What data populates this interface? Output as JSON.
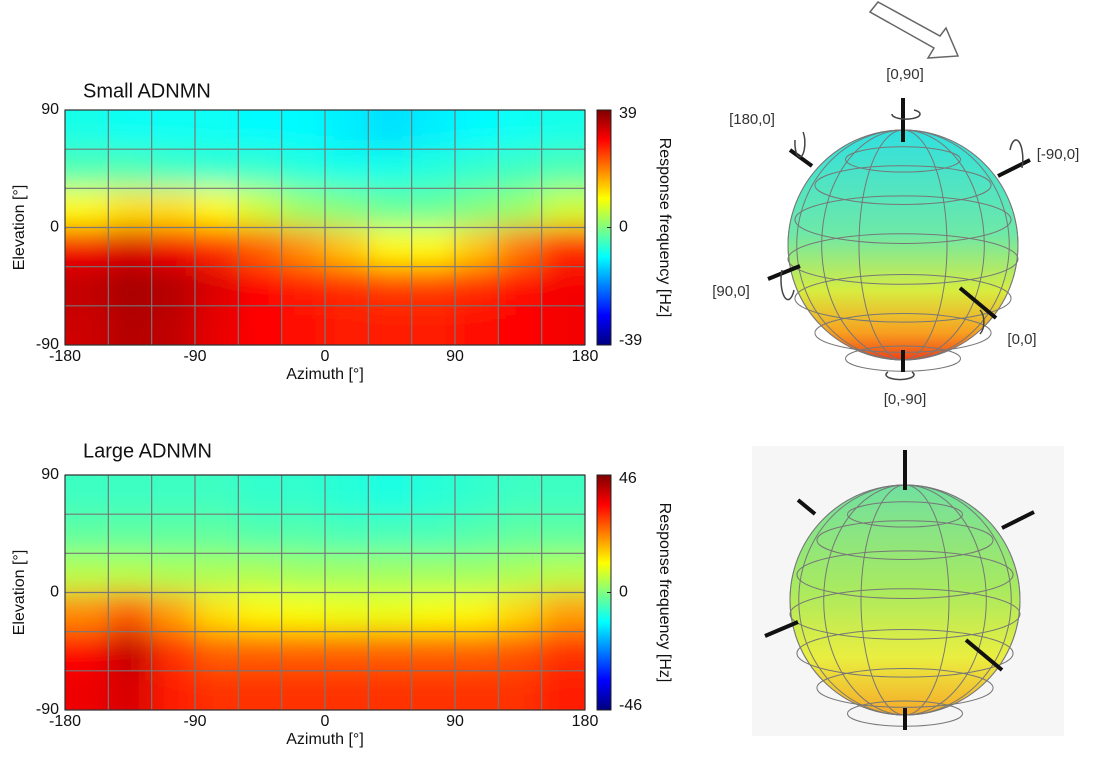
{
  "chart_data": [
    {
      "type": "heatmap",
      "title": "Small ADNMN",
      "x_label": "Azimuth  [°]",
      "y_label": "Elevation [°]",
      "colorbar_label": "Response frequency [Hz]",
      "xbins": [
        -180,
        -150,
        -120,
        -90,
        -60,
        -30,
        0,
        30,
        60,
        90,
        120,
        150,
        180
      ],
      "ybins": [
        90,
        60,
        30,
        0,
        -30,
        -60,
        -90
      ],
      "z": [
        [
          -8,
          -9,
          -9,
          -9,
          -10,
          -10,
          -11,
          -12,
          -11,
          -10,
          -9,
          -8
        ],
        [
          -4,
          -4,
          -5,
          -6,
          -6,
          -7,
          -8,
          -8,
          -7,
          -6,
          -5,
          -4
        ],
        [
          10,
          12,
          12,
          10,
          6,
          2,
          0,
          -2,
          -2,
          0,
          2,
          6
        ],
        [
          30,
          32,
          30,
          26,
          22,
          18,
          14,
          10,
          10,
          14,
          20,
          26
        ],
        [
          34,
          36,
          35,
          32,
          29,
          27,
          26,
          25,
          25,
          26,
          28,
          30
        ],
        [
          33,
          35,
          34,
          31,
          29,
          28,
          27,
          27,
          27,
          28,
          29,
          30
        ]
      ],
      "xlim": [
        -180,
        180
      ],
      "xticks": [
        -180,
        -90,
        0,
        90,
        180
      ],
      "ylim": [
        -90,
        90
      ],
      "yticks": [
        -90,
        0,
        90
      ],
      "zlim": [
        -39,
        39
      ],
      "zticks": [
        -39,
        0,
        39
      ],
      "colormap": [
        "#00007f",
        "#0000ff",
        "#007fff",
        "#00ffff",
        "#7fff7f",
        "#ffff00",
        "#ff7f00",
        "#ff0000",
        "#7f0000"
      ],
      "grid": true
    },
    {
      "type": "heatmap",
      "title": "Large ADNMN",
      "x_label": "Azimuth  [°]",
      "y_label": "Elevation [°]",
      "colorbar_label": "Response frequency [Hz]",
      "xbins": [
        -180,
        -150,
        -120,
        -90,
        -60,
        -30,
        0,
        30,
        60,
        90,
        120,
        150,
        180
      ],
      "ybins": [
        90,
        60,
        30,
        0,
        -30,
        -60,
        -90
      ],
      "z": [
        [
          -6,
          -6,
          -6,
          -6,
          -7,
          -7,
          -8,
          -9,
          -8,
          -7,
          -6,
          -6
        ],
        [
          -3,
          -3,
          -3,
          -3,
          -4,
          -4,
          -5,
          -5,
          -5,
          -4,
          -3,
          -3
        ],
        [
          5,
          5,
          4,
          4,
          4,
          3,
          3,
          3,
          3,
          3,
          4,
          5
        ],
        [
          22,
          26,
          20,
          14,
          12,
          11,
          10,
          10,
          11,
          12,
          15,
          20
        ],
        [
          34,
          40,
          30,
          26,
          26,
          26,
          26,
          26,
          26,
          26,
          27,
          30
        ],
        [
          36,
          38,
          32,
          30,
          30,
          30,
          30,
          30,
          30,
          30,
          30,
          32
        ]
      ],
      "xlim": [
        -180,
        180
      ],
      "xticks": [
        -180,
        -90,
        0,
        90,
        180
      ],
      "ylim": [
        -90,
        90
      ],
      "yticks": [
        -90,
        0,
        90
      ],
      "zlim": [
        -46,
        46
      ],
      "zticks": [
        -46,
        0,
        46
      ],
      "colormap": [
        "#00007f",
        "#0000ff",
        "#007fff",
        "#00ffff",
        "#7fff7f",
        "#ffff00",
        "#ff7f00",
        "#ff0000",
        "#7f0000"
      ],
      "grid": true
    }
  ],
  "sphere_labels": [
    "[0,90]",
    "[180,0]",
    "[-90,0]",
    "[90,0]",
    "[0,0]",
    "[0,-90]"
  ]
}
